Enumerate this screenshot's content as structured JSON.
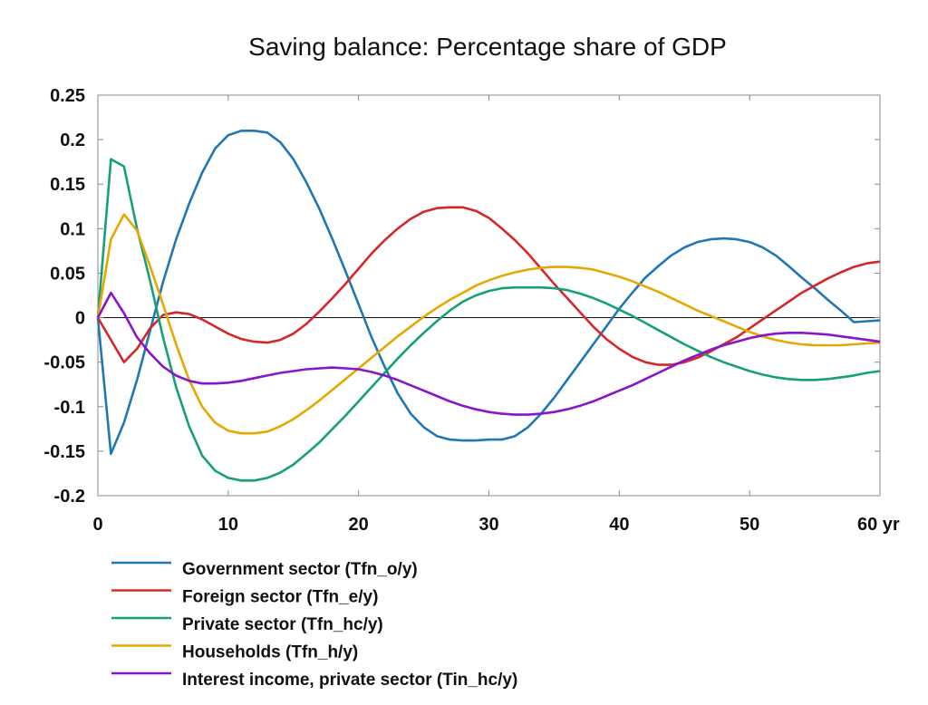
{
  "chart_data": {
    "type": "line",
    "title": "Saving balance: Percentage share of GDP",
    "xlabel": "",
    "ylabel": "",
    "xlim": [
      0,
      60
    ],
    "ylim": [
      -0.2,
      0.25
    ],
    "x_ticks": [
      0,
      10,
      20,
      30,
      40,
      50,
      60
    ],
    "x_tick_labels": [
      "0",
      "10",
      "20",
      "30",
      "40",
      "50",
      "60 yr"
    ],
    "y_ticks": [
      0.25,
      0.2,
      0.15,
      0.1,
      0.05,
      0,
      -0.05,
      -0.1,
      -0.15,
      -0.2
    ],
    "y_tick_labels": [
      "0.25",
      "0.2",
      "0.15",
      "0.1",
      "0.05",
      "0",
      "-0.05",
      "-0.1",
      "-0.15",
      "-0.2"
    ],
    "grid": false,
    "zero_line": true,
    "legend_position": "bottom",
    "x": [
      0,
      1,
      2,
      3,
      4,
      5,
      6,
      7,
      8,
      9,
      10,
      11,
      12,
      13,
      14,
      15,
      16,
      17,
      18,
      19,
      20,
      21,
      22,
      23,
      24,
      25,
      26,
      27,
      28,
      29,
      30,
      31,
      32,
      33,
      34,
      35,
      36,
      37,
      38,
      39,
      40,
      41,
      42,
      43,
      44,
      45,
      46,
      47,
      48,
      49,
      50,
      51,
      52,
      53,
      54,
      55,
      56,
      57,
      58,
      59,
      60
    ],
    "series": [
      {
        "name": "Government sector (Tfn_o/y)",
        "color": "#1f77b4",
        "values": [
          0,
          -0.153,
          -0.118,
          -0.07,
          -0.015,
          0.04,
          0.088,
          0.128,
          0.163,
          0.19,
          0.205,
          0.21,
          0.21,
          0.208,
          0.197,
          0.178,
          0.152,
          0.122,
          0.088,
          0.052,
          0.015,
          -0.022,
          -0.055,
          -0.085,
          -0.108,
          -0.123,
          -0.133,
          -0.137,
          -0.138,
          -0.138,
          -0.137,
          -0.137,
          -0.133,
          -0.123,
          -0.108,
          -0.09,
          -0.07,
          -0.05,
          -0.03,
          -0.01,
          0.01,
          0.028,
          0.045,
          0.058,
          0.07,
          0.079,
          0.085,
          0.088,
          0.089,
          0.088,
          0.085,
          0.079,
          0.07,
          0.058,
          0.045,
          0.033,
          0.02,
          0.008,
          -0.005,
          -0.004,
          -0.003
        ]
      },
      {
        "name": "Foreign sector (Tfn_e/y)",
        "color": "#d62728",
        "values": [
          0,
          -0.025,
          -0.05,
          -0.035,
          -0.012,
          0.003,
          0.006,
          0.004,
          -0.002,
          -0.01,
          -0.018,
          -0.024,
          -0.027,
          -0.028,
          -0.025,
          -0.018,
          -0.007,
          0.007,
          0.022,
          0.038,
          0.055,
          0.072,
          0.087,
          0.1,
          0.111,
          0.119,
          0.123,
          0.124,
          0.124,
          0.12,
          0.112,
          0.1,
          0.087,
          0.072,
          0.055,
          0.038,
          0.022,
          0.006,
          -0.01,
          -0.024,
          -0.035,
          -0.044,
          -0.05,
          -0.053,
          -0.053,
          -0.05,
          -0.045,
          -0.038,
          -0.03,
          -0.022,
          -0.012,
          -0.002,
          0.008,
          0.018,
          0.028,
          0.036,
          0.044,
          0.051,
          0.057,
          0.061,
          0.063
        ]
      },
      {
        "name": "Private sector (Tfn_hc/y)",
        "color": "#17a078",
        "values": [
          0,
          0.178,
          0.17,
          0.1,
          0.042,
          -0.022,
          -0.078,
          -0.122,
          -0.155,
          -0.172,
          -0.18,
          -0.183,
          -0.183,
          -0.18,
          -0.174,
          -0.165,
          -0.153,
          -0.14,
          -0.125,
          -0.11,
          -0.094,
          -0.078,
          -0.062,
          -0.046,
          -0.031,
          -0.017,
          -0.004,
          0.008,
          0.018,
          0.025,
          0.03,
          0.033,
          0.034,
          0.034,
          0.034,
          0.033,
          0.031,
          0.027,
          0.022,
          0.016,
          0.009,
          0.002,
          -0.006,
          -0.014,
          -0.022,
          -0.03,
          -0.037,
          -0.044,
          -0.05,
          -0.055,
          -0.06,
          -0.064,
          -0.067,
          -0.069,
          -0.07,
          -0.07,
          -0.069,
          -0.067,
          -0.065,
          -0.062,
          -0.06
        ]
      },
      {
        "name": "Households (Tfn_h/y)",
        "color": "#e6a800",
        "values": [
          0,
          0.088,
          0.116,
          0.098,
          0.058,
          0.015,
          -0.03,
          -0.07,
          -0.1,
          -0.118,
          -0.127,
          -0.13,
          -0.13,
          -0.128,
          -0.122,
          -0.114,
          -0.104,
          -0.093,
          -0.081,
          -0.069,
          -0.057,
          -0.045,
          -0.033,
          -0.021,
          -0.01,
          0.001,
          0.011,
          0.02,
          0.028,
          0.036,
          0.042,
          0.047,
          0.051,
          0.054,
          0.056,
          0.057,
          0.057,
          0.056,
          0.054,
          0.05,
          0.046,
          0.041,
          0.035,
          0.029,
          0.022,
          0.015,
          0.008,
          0.002,
          -0.004,
          -0.01,
          -0.016,
          -0.021,
          -0.025,
          -0.028,
          -0.03,
          -0.031,
          -0.031,
          -0.031,
          -0.03,
          -0.029,
          -0.028
        ]
      },
      {
        "name": "Interest income, private sector (Tin_hc/y)",
        "color": "#8a14c8",
        "values": [
          0,
          0.028,
          0.005,
          -0.022,
          -0.04,
          -0.055,
          -0.065,
          -0.071,
          -0.074,
          -0.074,
          -0.073,
          -0.071,
          -0.068,
          -0.065,
          -0.062,
          -0.06,
          -0.058,
          -0.057,
          -0.056,
          -0.057,
          -0.058,
          -0.061,
          -0.065,
          -0.07,
          -0.076,
          -0.082,
          -0.088,
          -0.094,
          -0.099,
          -0.103,
          -0.106,
          -0.108,
          -0.109,
          -0.109,
          -0.108,
          -0.106,
          -0.103,
          -0.099,
          -0.094,
          -0.088,
          -0.082,
          -0.076,
          -0.069,
          -0.062,
          -0.055,
          -0.048,
          -0.042,
          -0.036,
          -0.031,
          -0.027,
          -0.023,
          -0.02,
          -0.018,
          -0.017,
          -0.017,
          -0.018,
          -0.019,
          -0.021,
          -0.023,
          -0.025,
          -0.027
        ]
      }
    ]
  }
}
